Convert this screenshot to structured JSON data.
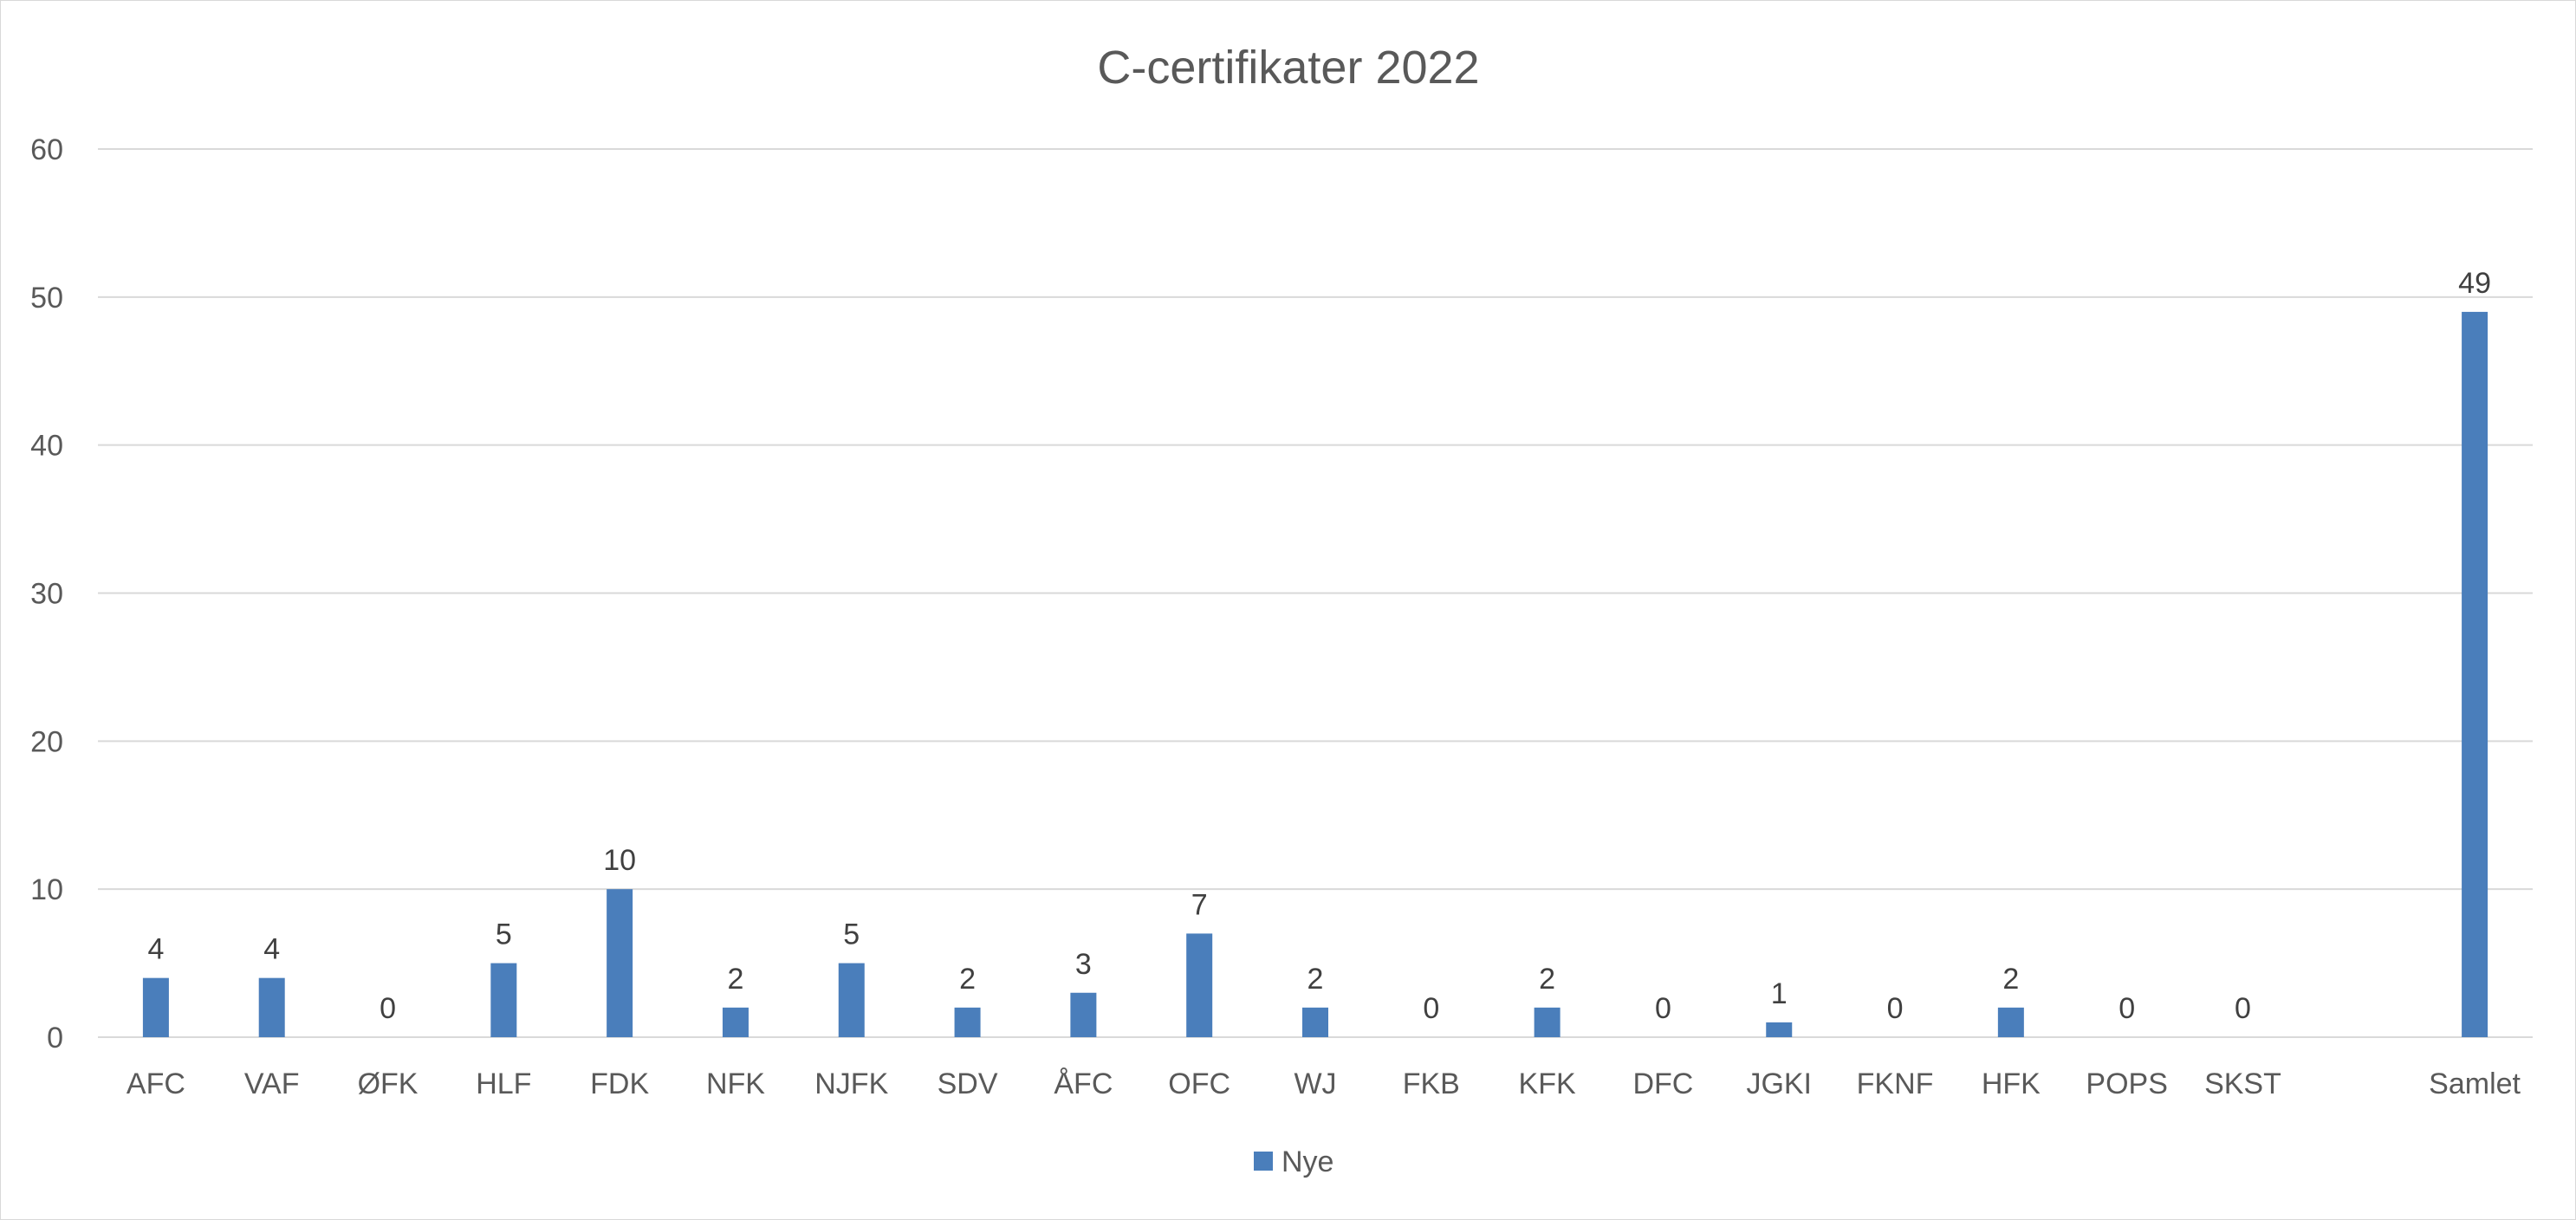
{
  "chart_data": {
    "type": "bar",
    "title": "C-certifikater 2022",
    "xlabel": "",
    "ylabel": "",
    "categories": [
      "AFC",
      "VAF",
      "ØFK",
      "HLF",
      "FDK",
      "NFK",
      "NJFK",
      "SDV",
      "ÅFC",
      "OFC",
      "WJ",
      "FKB",
      "KFK",
      "DFC",
      "JGKI",
      "FKNF",
      "HFK",
      "POPS",
      "SKST",
      "",
      "Samlet"
    ],
    "series": [
      {
        "name": "Nye",
        "color": "#4a7ebb",
        "values": [
          4,
          4,
          0,
          5,
          10,
          2,
          5,
          2,
          3,
          7,
          2,
          0,
          2,
          0,
          1,
          0,
          2,
          0,
          0,
          null,
          49
        ],
        "data_labels": [
          "4",
          "4",
          "0",
          "5",
          "10",
          "2",
          "5",
          "2",
          "3",
          "7",
          "2",
          "0",
          "2",
          "0",
          "1",
          "0",
          "2",
          "0",
          "0",
          "",
          "49"
        ]
      }
    ],
    "ylim": [
      0,
      60
    ],
    "yticks": [
      "0",
      "10",
      "20",
      "30",
      "40",
      "50",
      "60"
    ],
    "grid": true,
    "legend_position": "bottom"
  }
}
